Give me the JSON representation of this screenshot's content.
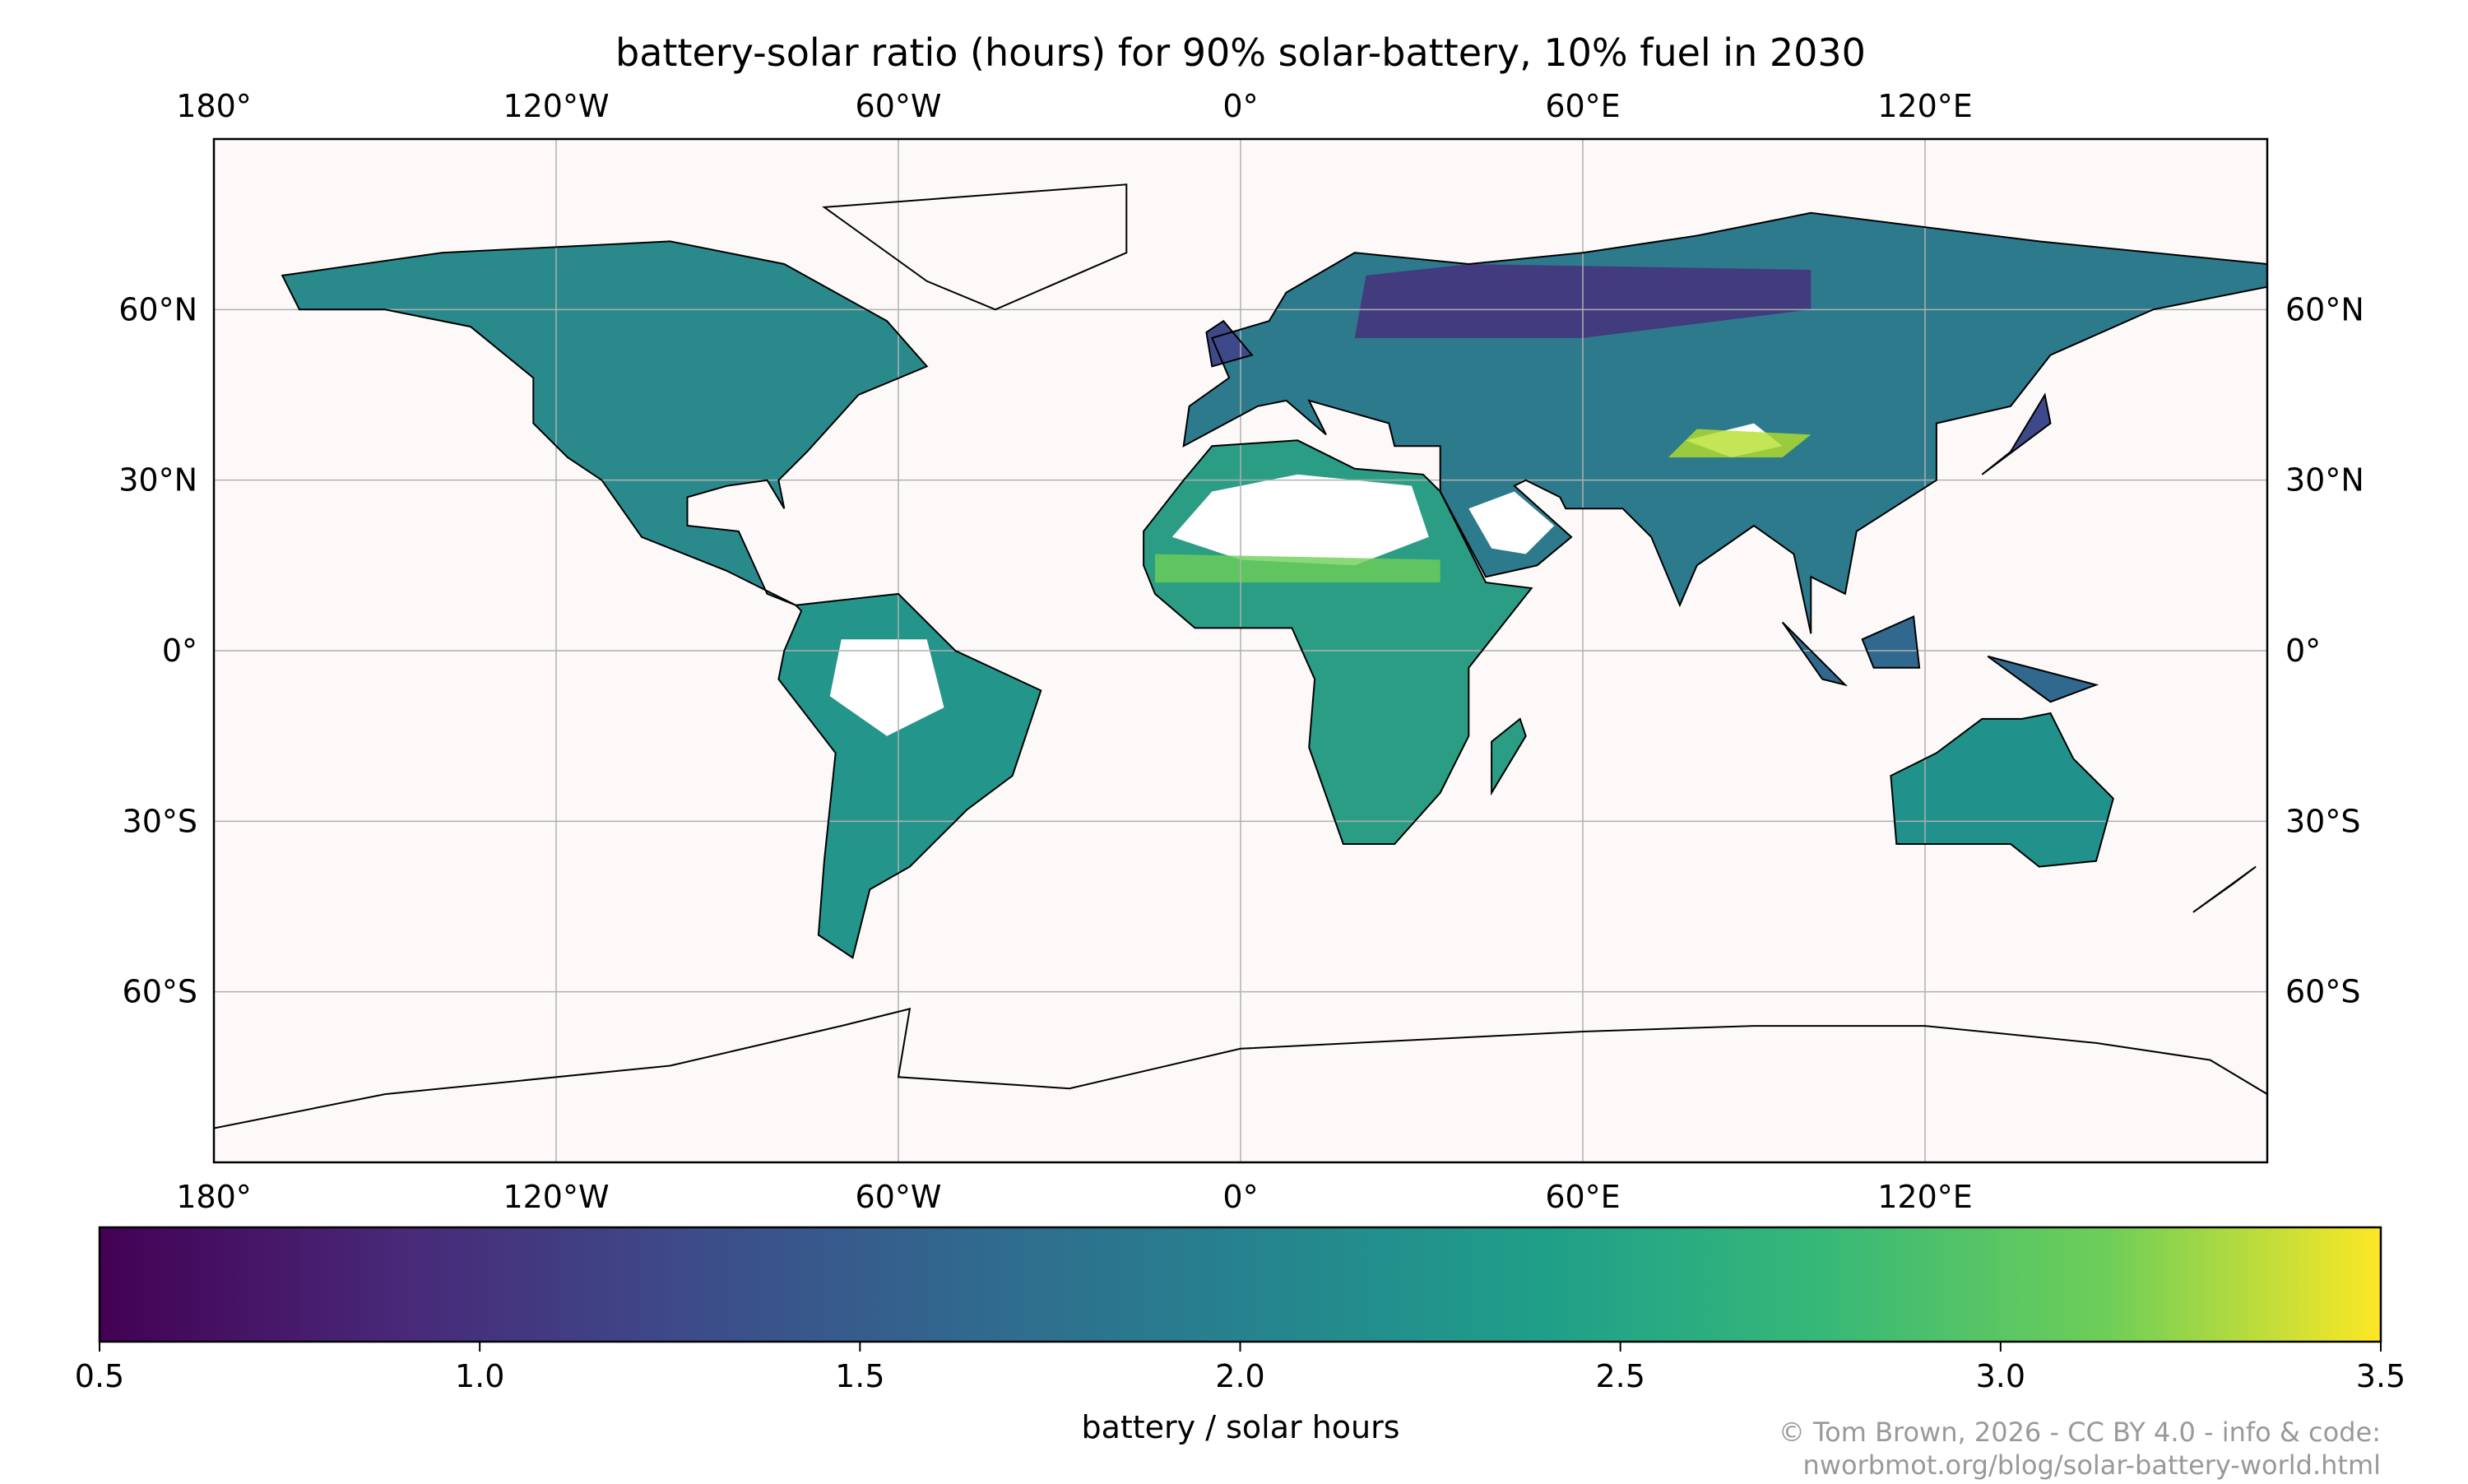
{
  "title": "battery-solar ratio (hours) for 90% solar-battery, 10% fuel in 2030",
  "map": {
    "projection": "plate-carree",
    "extent": {
      "lon": [
        -180,
        180
      ],
      "lat": [
        -90,
        90
      ]
    },
    "background_color": "#fdf9f8",
    "gridlines": true,
    "lon_ticks": [
      {
        "value": -180,
        "label": "180°"
      },
      {
        "value": -120,
        "label": "120°W"
      },
      {
        "value": -60,
        "label": "60°W"
      },
      {
        "value": 0,
        "label": "0°"
      },
      {
        "value": 60,
        "label": "60°E"
      },
      {
        "value": 120,
        "label": "120°E"
      }
    ],
    "lat_ticks": [
      {
        "value": 60,
        "label": "60°N"
      },
      {
        "value": 30,
        "label": "30°N"
      },
      {
        "value": 0,
        "label": "0°"
      },
      {
        "value": -30,
        "label": "30°S"
      },
      {
        "value": -60,
        "label": "60°S"
      }
    ]
  },
  "colorbar": {
    "colormap": "viridis",
    "range": [
      0.5,
      3.5
    ],
    "ticks": [
      "0.5",
      "1.0",
      "1.5",
      "2.0",
      "2.5",
      "3.0",
      "3.5"
    ],
    "label": "battery / solar hours"
  },
  "credit": {
    "line1": "© Tom Brown, 2026 - CC BY 4.0 - info & code:",
    "line2": "nworbmot.org/blog/solar-battery-world.html"
  }
}
